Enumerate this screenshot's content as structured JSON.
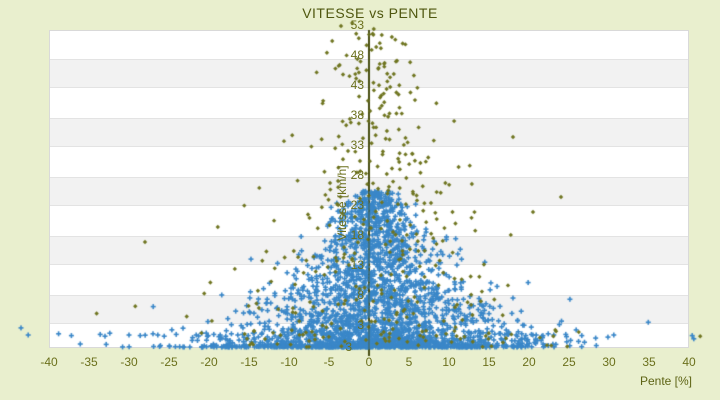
{
  "title": "VITESSE vs PENTE",
  "colors": {
    "background": "#e9efce",
    "plot_background": "#ffffff",
    "stripe": "#f2f2f2",
    "plot_border": "#d9d9d9",
    "axis_line": "#474e12",
    "tick_text": "#6b701c",
    "title_text": "#4f570f",
    "series_blue": "#3a87c8",
    "series_olive": "#6f7520"
  },
  "chart_data": {
    "type": "scatter",
    "title": "VITESSE vs PENTE",
    "xlabel": "Pente [%]",
    "ylabel": "Vitesse [km/h]",
    "xlim": [
      -40,
      40
    ],
    "ylim": [
      3,
      53
    ],
    "grid": "horizontal-bands",
    "legend": "none",
    "x_ticks": [
      "-40",
      "-35",
      "-30",
      "-25",
      "-20",
      "-15",
      "-10",
      "-5",
      "0",
      "5",
      "10",
      "15",
      "20",
      "25",
      "30",
      "35",
      "40"
    ],
    "y_ticks": [
      "53",
      "48",
      "43",
      "38",
      "33",
      "28",
      "23",
      "18",
      "13",
      "8",
      "3"
    ],
    "y_axis_min_label": "3",
    "series": [
      {
        "name": "series-1-blue",
        "marker": "plus",
        "color": "#3a87c8",
        "count": 2700,
        "gen": {
          "seed": 1337,
          "v_base": 3,
          "v_span": 26,
          "v_pow": 2.6,
          "v_outlier_prob": 0.004,
          "v_outlier_min": 25,
          "v_outlier_span": 8,
          "sigma_min": 1.1,
          "sigma_scale": 8.5,
          "sigma_pow": 1.1,
          "sigma_vrange": 27,
          "x_shift": 0.8,
          "fat_tail_vmax": 8,
          "fat_tail_prob": 0.05,
          "fat_tail_mult": 2.1,
          "x_clip": [
            -43.5,
            40.6
          ]
        },
        "points": [
          [
            -42.6,
            5.0
          ],
          [
            -38.8,
            5.2
          ],
          [
            -37.2,
            4.9
          ],
          [
            -33.6,
            5.1
          ],
          [
            -33.0,
            4.8
          ],
          [
            -32.4,
            5.3
          ],
          [
            -30.0,
            5.0
          ],
          [
            -28.6,
            4.9
          ],
          [
            -27.0,
            5.2
          ],
          [
            -26.4,
            5.0
          ],
          [
            -25.6,
            4.8
          ],
          [
            -24.1,
            5.1
          ],
          [
            -21.6,
            5.0
          ],
          [
            -20.9,
            5.3
          ],
          [
            -20.1,
            4.9
          ],
          [
            -19.4,
            5.1
          ],
          [
            -18.6,
            5.0
          ],
          [
            -17.9,
            4.8
          ],
          [
            -17.2,
            5.2
          ],
          [
            -16.4,
            5.0
          ],
          [
            -15.8,
            5.1
          ],
          [
            -15.1,
            4.9
          ],
          [
            18.4,
            5.0
          ],
          [
            19.1,
            5.2
          ],
          [
            19.6,
            4.9
          ],
          [
            20.3,
            5.1
          ],
          [
            20.9,
            5.0
          ],
          [
            21.6,
            4.8
          ],
          [
            22.4,
            5.2
          ],
          [
            23.1,
            5.0
          ],
          [
            24.6,
            5.1
          ],
          [
            26.6,
            4.9
          ],
          [
            30.6,
            5.0
          ],
          [
            40.4,
            4.9
          ]
        ]
      },
      {
        "name": "series-2-olive",
        "marker": "diamond",
        "color": "#6f7520",
        "count": 380,
        "gen": {
          "seed": 777,
          "v_base": 3,
          "v_span": 52.5,
          "v_pow": 1.35,
          "v_outlier_prob": 0,
          "v_outlier_min": 0,
          "v_outlier_span": 0,
          "sigma_min": 1.6,
          "sigma_scale": 11,
          "sigma_pow": 1.3,
          "sigma_vrange": 52.5,
          "x_shift": 1.0,
          "fat_tail_vmax": 60,
          "fat_tail_prob": 0.05,
          "fat_tail_mult": 1.8,
          "x_clip": [
            -40.0,
            41.5
          ]
        },
        "points": [
          [
            41.4,
            4.8
          ],
          [
            17.8,
            5.1
          ],
          [
            -3.5,
            56.5
          ],
          [
            -1.6,
            55.2
          ],
          [
            -4.6,
            54.0
          ],
          [
            -2.1,
            57.0
          ],
          [
            0.6,
            56.0
          ],
          [
            -0.3,
            53.3
          ],
          [
            0.9,
            53.0
          ],
          [
            -2.8,
            51.6
          ],
          [
            1.9,
            50.2
          ],
          [
            -4.2,
            49.4
          ],
          [
            3.1,
            48.5
          ],
          [
            -1.2,
            47.3
          ],
          [
            2.2,
            46.0
          ],
          [
            -5.8,
            43.6
          ],
          [
            1.6,
            43.2
          ],
          [
            4.1,
            41.9
          ],
          [
            -3.3,
            40.6
          ],
          [
            6.2,
            39.6
          ],
          [
            -9.6,
            38.3
          ],
          [
            8.1,
            37.4
          ],
          [
            18.0,
            38.0
          ],
          [
            -7.2,
            36.4
          ],
          [
            5.4,
            35.2
          ],
          [
            11.2,
            33.0
          ],
          [
            -28.0,
            20.5
          ],
          [
            -18.9,
            23.0
          ],
          [
            24.0,
            28.0
          ],
          [
            20.5,
            25.5
          ]
        ]
      }
    ]
  },
  "layout_note": "horizontal gray bands alternate with white every 5 km/h; value axis drawn vertically at pente = 0"
}
